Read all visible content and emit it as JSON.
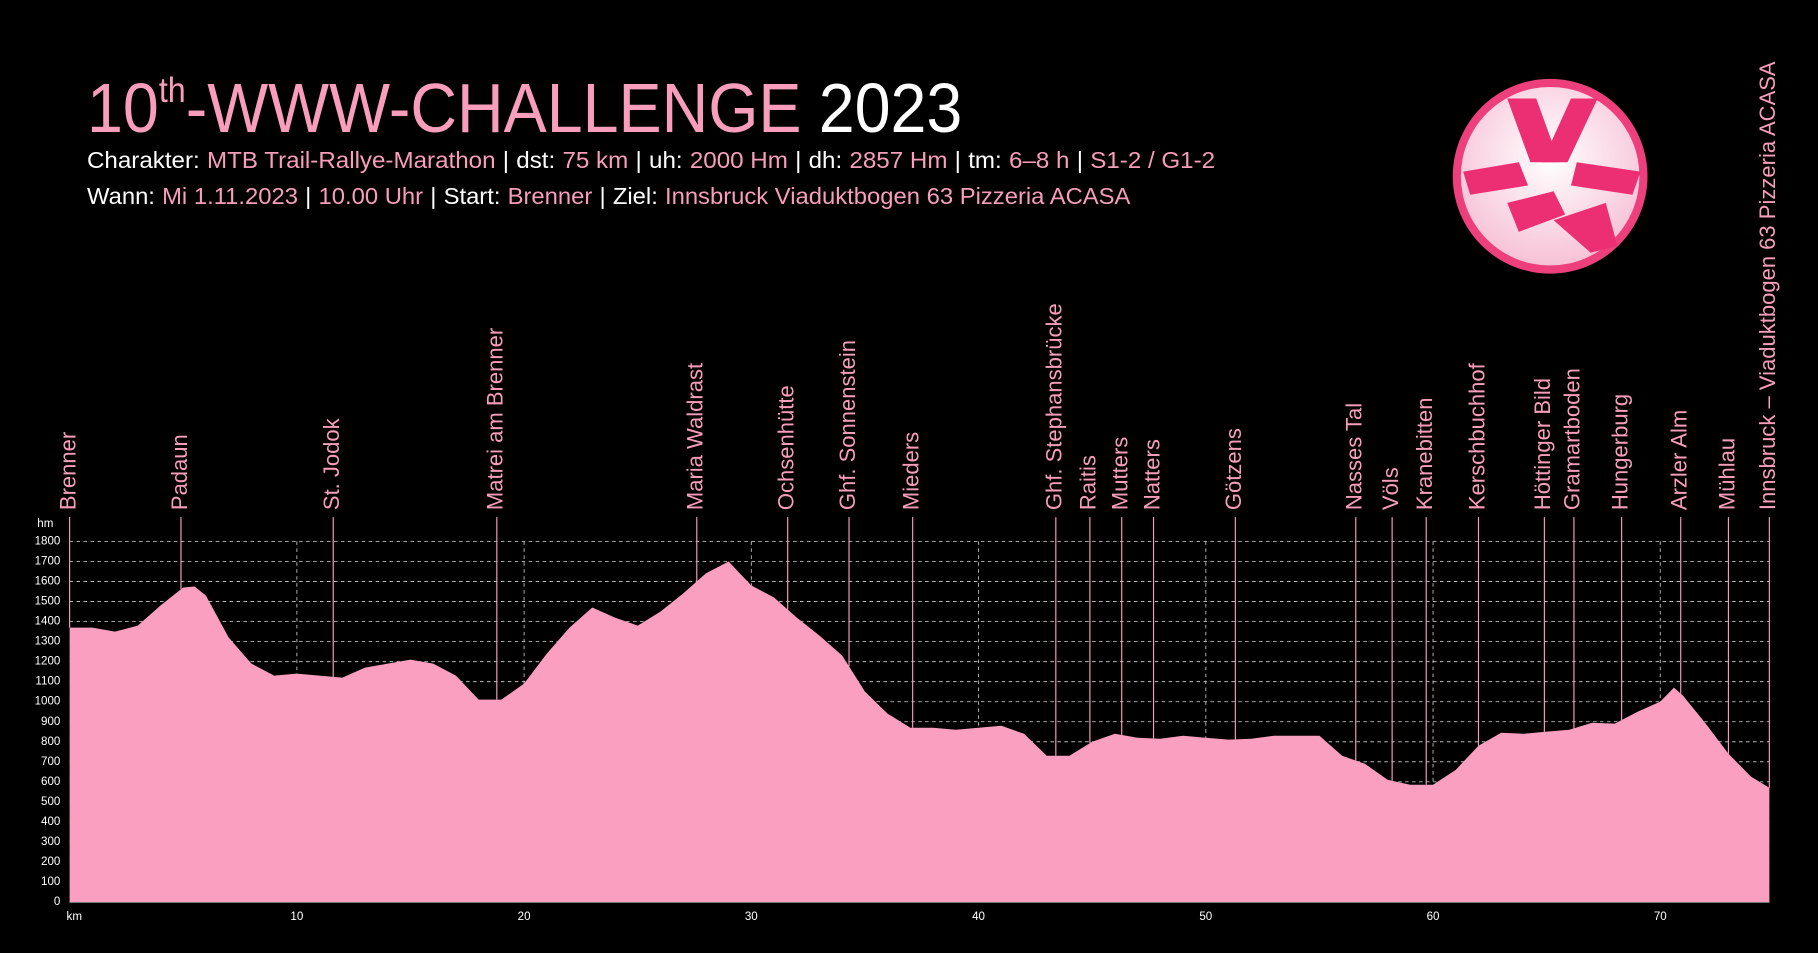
{
  "chart_data": {
    "type": "area",
    "title_parts": [
      "10",
      "th",
      "-WWW-CHALLENGE",
      "2023"
    ],
    "info": {
      "separator": "|",
      "lines": [
        [
          {
            "label": "Charakter:",
            "value": "MTB Trail-Rallye-Marathon"
          },
          {
            "label": "dst:",
            "value": "75 km"
          },
          {
            "label": "uh:",
            "value": "2000 Hm"
          },
          {
            "label": "dh:",
            "value": "2857 Hm"
          },
          {
            "label": "tm:",
            "value": "6–8 h"
          },
          {
            "value": "S1-2 / G1-2"
          }
        ],
        [
          {
            "label": "Wann:",
            "value": "Mi 1.11.2023"
          },
          {
            "value": "10.00 Uhr"
          },
          {
            "label": "Start:",
            "value": "Brenner"
          },
          {
            "label": "Ziel:",
            "value": "Innsbruck Viaduktbogen 63 Pizzeria ACASA"
          }
        ]
      ]
    },
    "y_label": "hm",
    "color": "#fb9fc0",
    "x": [
      0,
      1,
      2,
      3,
      4,
      5,
      5.5,
      6,
      7,
      8,
      9,
      10,
      11,
      12,
      13,
      14,
      15,
      16,
      17,
      18,
      19,
      20,
      21,
      22,
      23,
      24,
      25,
      26,
      27,
      28,
      29,
      30,
      31,
      32,
      33,
      34,
      35,
      36,
      37,
      38,
      39,
      40,
      41,
      42,
      43,
      44,
      45,
      46,
      47,
      48,
      49,
      50,
      51,
      52,
      53,
      54,
      55,
      56,
      57,
      58,
      59,
      60,
      61,
      62,
      63,
      64,
      65,
      66,
      67,
      68,
      69,
      70,
      70.6,
      71,
      72,
      73,
      74,
      74.8
    ],
    "values": [
      1370,
      1370,
      1350,
      1380,
      1480,
      1570,
      1575,
      1530,
      1320,
      1190,
      1130,
      1140,
      1130,
      1120,
      1170,
      1190,
      1210,
      1190,
      1130,
      1010,
      1010,
      1090,
      1240,
      1370,
      1470,
      1420,
      1380,
      1450,
      1540,
      1640,
      1700,
      1580,
      1520,
      1420,
      1330,
      1230,
      1050,
      940,
      870,
      870,
      860,
      870,
      880,
      840,
      730,
      730,
      800,
      840,
      820,
      815,
      830,
      820,
      810,
      815,
      830,
      830,
      830,
      730,
      690,
      610,
      585,
      585,
      660,
      780,
      845,
      840,
      850,
      860,
      895,
      890,
      950,
      1000,
      1070,
      1030,
      890,
      740,
      625,
      570
    ],
    "xlim": [
      0,
      75
    ],
    "xticks": [
      {
        "value": 0,
        "label": "km"
      },
      10,
      20,
      30,
      40,
      50,
      60,
      70
    ],
    "ylim": [
      0,
      1800
    ],
    "yticks": [
      0,
      100,
      200,
      300,
      400,
      500,
      600,
      700,
      800,
      900,
      1000,
      1100,
      1200,
      1300,
      1400,
      1500,
      1600,
      1700,
      1800
    ],
    "grid": true,
    "waypoints": [
      {
        "name": "Brenner",
        "km": 0
      },
      {
        "name": "Padaun",
        "km": 4.9
      },
      {
        "name": "St. Jodok",
        "km": 11.6
      },
      {
        "name": "Matrei am Brenner",
        "km": 18.8
      },
      {
        "name": "Maria Waldrast",
        "km": 27.6
      },
      {
        "name": "Ochsenhütte",
        "km": 31.6
      },
      {
        "name": "Ghf. Sonnenstein",
        "km": 34.3
      },
      {
        "name": "Mieders",
        "km": 37.1
      },
      {
        "name": "Ghf. Stephansbrücke",
        "km": 43.4
      },
      {
        "name": "Raitis",
        "km": 44.9
      },
      {
        "name": "Mutters",
        "km": 46.3
      },
      {
        "name": "Natters",
        "km": 47.7
      },
      {
        "name": "Götzens",
        "km": 51.3
      },
      {
        "name": "Nasses Tal",
        "km": 56.6
      },
      {
        "name": "Völs",
        "km": 58.2
      },
      {
        "name": "Kranebitten",
        "km": 59.7
      },
      {
        "name": "Kerschbuchhof",
        "km": 62.0
      },
      {
        "name": "Höttinger Bild",
        "km": 64.9
      },
      {
        "name": "Gramartboden",
        "km": 66.2
      },
      {
        "name": "Hungerburg",
        "km": 68.3
      },
      {
        "name": "Arzler Alm",
        "km": 70.9
      },
      {
        "name": "Mühlau",
        "km": 73.0
      },
      {
        "name": "Innsbruck – Viaduktbogen 63 Pizzeria ACASA",
        "km": 74.8
      }
    ]
  }
}
